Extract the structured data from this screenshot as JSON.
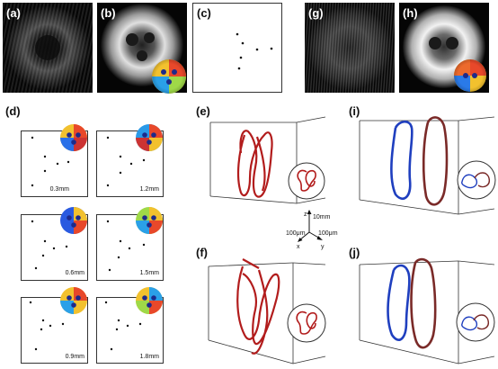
{
  "panels": {
    "a": "(a)",
    "b": "(b)",
    "c": "(c)",
    "d": "(d)",
    "e": "(e)",
    "f": "(f)",
    "g": "(g)",
    "h": "(h)",
    "i": "(i)",
    "j": "(j)"
  },
  "distances": [
    "0.3mm",
    "1.2mm",
    "0.6mm",
    "1.5mm",
    "0.9mm",
    "1.8mm"
  ],
  "axes": {
    "z_label": "z",
    "x_label": "x",
    "y_label": "y",
    "z_scale": "10mm",
    "x_scale": "100μm",
    "y_scale": "100μm"
  },
  "colors": {
    "knot_red": "#b21c1c",
    "knot_blue": "#1f3fbf",
    "knot_brown": "#7a2a28"
  }
}
